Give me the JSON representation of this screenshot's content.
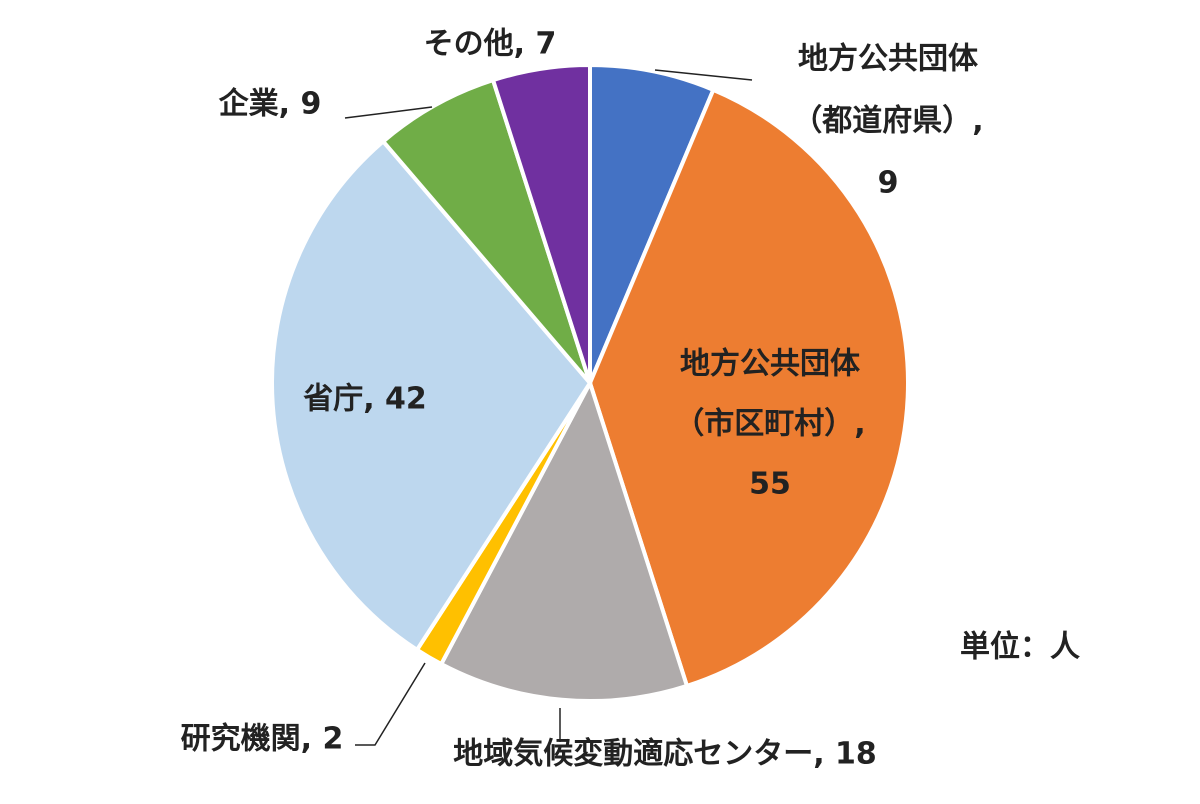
{
  "chart_data": {
    "type": "pie",
    "labels": [
      [
        "地方公共団体",
        "（都道府県）,",
        "9"
      ],
      [
        "地方公共団体",
        "（市区町村）,",
        "55"
      ],
      [
        "地域気候変動適応センター, 18"
      ],
      [
        "研究機関, 2"
      ],
      [
        "省庁, 42"
      ],
      [
        "企業, 9"
      ],
      [
        "その他, 7"
      ]
    ],
    "values": [
      9,
      55,
      18,
      2,
      42,
      9,
      7
    ],
    "colors": [
      "#4472c4",
      "#ed7d31",
      "#afabab",
      "#ffc000",
      "#bdd7ee",
      "#70ad47",
      "#7030a0"
    ],
    "unit_note": "単位：人"
  }
}
